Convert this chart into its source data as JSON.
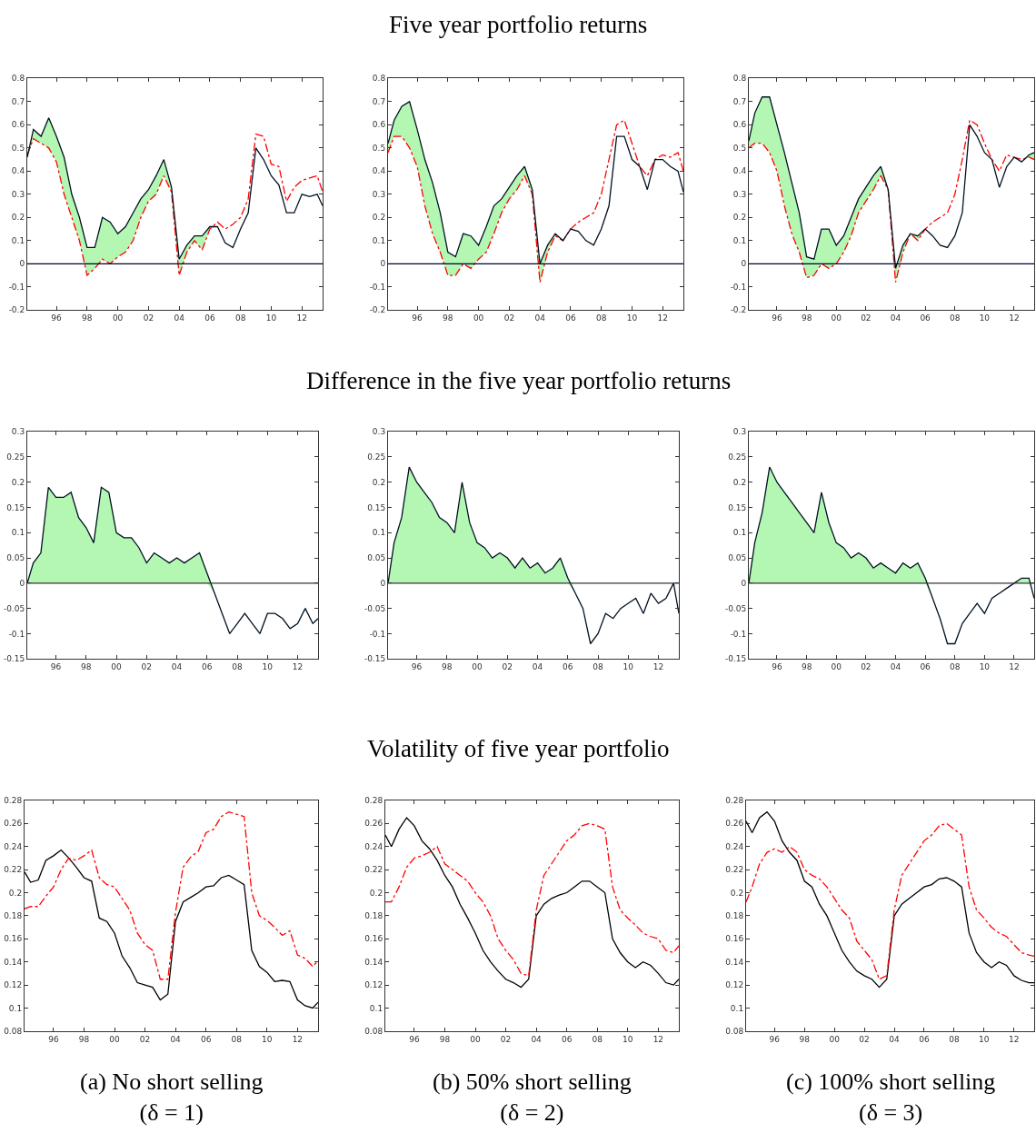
{
  "chart_data": [
    {
      "type": "line",
      "x": [
        1994.1,
        1994.5,
        1995.0,
        1995.5,
        1996.0,
        1996.5,
        1997.0,
        1997.5,
        1998.0,
        1998.5,
        1999.0,
        1999.5,
        2000.0,
        2000.5,
        2001.0,
        2001.5,
        2002.0,
        2002.5,
        2003.0,
        2003.5,
        2004.0,
        2004.5,
        2005.0,
        2005.5,
        2006.0,
        2006.5,
        2007.0,
        2007.5,
        2008.0,
        2008.5,
        2009.0,
        2009.5,
        2010.0,
        2010.5,
        2011.0,
        2011.5,
        2012.0,
        2012.5,
        2013.0,
        2013.35
      ],
      "xlim": [
        1994.1,
        2013.35
      ],
      "xticks": [
        {
          "value": 1996,
          "label": "96"
        },
        {
          "value": 1998,
          "label": "98"
        },
        {
          "value": 2000,
          "label": "00"
        },
        {
          "value": 2002,
          "label": "02"
        },
        {
          "value": 2004,
          "label": "04"
        },
        {
          "value": 2006,
          "label": "06"
        },
        {
          "value": 2008,
          "label": "08"
        },
        {
          "value": 2010,
          "label": "10"
        },
        {
          "value": 2012,
          "label": "12"
        }
      ],
      "ylim": [
        -0.2,
        0.8
      ],
      "yticks": [
        -0.2,
        -0.1,
        0,
        0.1,
        0.2,
        0.3,
        0.4,
        0.5,
        0.6,
        0.7,
        0.8
      ],
      "grid": false,
      "legend": false,
      "ref_lines": [
        {
          "axis": "y",
          "value": 0,
          "color": "#000033"
        }
      ],
      "series": [
        {
          "color": "#ff0000",
          "line_style": "dashed",
          "values": [
            0.47,
            0.54,
            0.52,
            0.5,
            0.44,
            0.3,
            0.2,
            0.1,
            -0.05,
            -0.02,
            0.02,
            0.0,
            0.03,
            0.05,
            0.1,
            0.2,
            0.27,
            0.3,
            0.38,
            0.31,
            -0.05,
            0.05,
            0.1,
            0.06,
            0.15,
            0.18,
            0.15,
            0.17,
            0.2,
            0.28,
            0.56,
            0.55,
            0.43,
            0.42,
            0.27,
            0.33,
            0.36,
            0.37,
            0.38,
            0.31
          ]
        },
        {
          "color": "#001122",
          "line_style": "solid",
          "lower": [
            0.46,
            0.54,
            0.52,
            0.5,
            0.44,
            0.3,
            0.2,
            0.1,
            -0.05,
            -0.02,
            0.02,
            0.0,
            0.03,
            0.05,
            0.1,
            0.2,
            0.27,
            0.3,
            0.38,
            0.31,
            -0.05,
            0.05,
            0.1,
            0.06,
            0.15,
            0.16,
            0.09,
            0.07,
            0.15,
            0.22,
            0.5,
            0.45,
            0.38,
            0.34,
            0.22,
            0.22,
            0.3,
            0.29,
            0.3,
            0.25
          ],
          "upper": [
            0.46,
            0.58,
            0.55,
            0.63,
            0.55,
            0.46,
            0.3,
            0.2,
            0.07,
            0.07,
            0.2,
            0.18,
            0.13,
            0.16,
            0.22,
            0.28,
            0.32,
            0.38,
            0.45,
            0.33,
            0.02,
            0.08,
            0.12,
            0.12,
            0.16,
            0.16,
            0.09,
            0.07,
            0.15,
            0.22,
            0.5,
            0.45,
            0.38,
            0.34,
            0.22,
            0.22,
            0.3,
            0.29,
            0.3,
            0.25
          ],
          "values": [
            0.46,
            0.58,
            0.55,
            0.63,
            0.55,
            0.46,
            0.3,
            0.2,
            0.07,
            0.07,
            0.2,
            0.18,
            0.13,
            0.16,
            0.22,
            0.28,
            0.32,
            0.38,
            0.45,
            0.33,
            0.02,
            0.08,
            0.12,
            0.12,
            0.16,
            0.16,
            0.09,
            0.07,
            0.15,
            0.22,
            0.5,
            0.45,
            0.38,
            0.34,
            0.22,
            0.22,
            0.3,
            0.29,
            0.3,
            0.25
          ]
        }
      ]
    },
    {
      "type": "line",
      "title": "Five year portfolio returns",
      "x": [
        1994.1,
        1994.5,
        1995.0,
        1995.5,
        1996.0,
        1996.5,
        1997.0,
        1997.5,
        1998.0,
        1998.5,
        1999.0,
        1999.5,
        2000.0,
        2000.5,
        2001.0,
        2001.5,
        2002.0,
        2002.5,
        2003.0,
        2003.5,
        2004.0,
        2004.5,
        2005.0,
        2005.5,
        2006.0,
        2006.5,
        2007.0,
        2007.5,
        2008.0,
        2008.5,
        2009.0,
        2009.5,
        2010.0,
        2010.5,
        2011.0,
        2011.5,
        2012.0,
        2012.5,
        2013.0,
        2013.35
      ],
      "xlim": [
        1994.1,
        2013.35
      ],
      "xticks": [
        {
          "value": 1996,
          "label": "96"
        },
        {
          "value": 1998,
          "label": "98"
        },
        {
          "value": 2000,
          "label": "00"
        },
        {
          "value": 2002,
          "label": "02"
        },
        {
          "value": 2004,
          "label": "04"
        },
        {
          "value": 2006,
          "label": "06"
        },
        {
          "value": 2008,
          "label": "08"
        },
        {
          "value": 2010,
          "label": "10"
        },
        {
          "value": 2012,
          "label": "12"
        }
      ],
      "ylim": [
        -0.2,
        0.8
      ],
      "yticks": [
        -0.2,
        -0.1,
        0,
        0.1,
        0.2,
        0.3,
        0.4,
        0.5,
        0.6,
        0.7,
        0.8
      ],
      "grid": false,
      "legend": false,
      "ref_lines": [
        {
          "axis": "y",
          "value": 0,
          "color": "#000033"
        }
      ],
      "series": [
        {
          "color": "#ff0000",
          "line_style": "dashed",
          "values": [
            0.48,
            0.55,
            0.55,
            0.5,
            0.42,
            0.25,
            0.13,
            0.05,
            -0.05,
            -0.05,
            0.0,
            -0.02,
            0.02,
            0.05,
            0.13,
            0.22,
            0.28,
            0.32,
            0.38,
            0.3,
            -0.08,
            0.05,
            0.12,
            0.1,
            0.15,
            0.18,
            0.2,
            0.22,
            0.3,
            0.45,
            0.6,
            0.62,
            0.52,
            0.42,
            0.38,
            0.45,
            0.47,
            0.46,
            0.48,
            0.4
          ]
        },
        {
          "color": "#001122",
          "line_style": "solid",
          "lower": [
            0.48,
            0.55,
            0.55,
            0.5,
            0.42,
            0.25,
            0.13,
            0.05,
            -0.05,
            -0.05,
            0.0,
            -0.02,
            0.02,
            0.05,
            0.13,
            0.22,
            0.28,
            0.32,
            0.38,
            0.3,
            -0.08,
            0.05,
            0.12,
            0.1,
            0.15,
            0.14,
            0.1,
            0.08,
            0.15,
            0.25,
            0.55,
            0.55,
            0.45,
            0.42,
            0.32,
            0.45,
            0.45,
            0.42,
            0.4,
            0.31
          ],
          "upper": [
            0.52,
            0.62,
            0.68,
            0.7,
            0.58,
            0.45,
            0.35,
            0.22,
            0.05,
            0.03,
            0.13,
            0.12,
            0.08,
            0.16,
            0.25,
            0.28,
            0.33,
            0.38,
            0.42,
            0.32,
            0.0,
            0.08,
            0.13,
            0.1,
            0.15,
            0.14,
            0.1,
            0.08,
            0.15,
            0.25,
            0.55,
            0.55,
            0.45,
            0.42,
            0.32,
            0.45,
            0.45,
            0.42,
            0.4,
            0.31
          ],
          "values": [
            0.52,
            0.62,
            0.68,
            0.7,
            0.58,
            0.45,
            0.35,
            0.22,
            0.05,
            0.03,
            0.13,
            0.12,
            0.08,
            0.16,
            0.25,
            0.28,
            0.33,
            0.38,
            0.42,
            0.32,
            0.0,
            0.08,
            0.13,
            0.1,
            0.15,
            0.14,
            0.1,
            0.08,
            0.15,
            0.25,
            0.55,
            0.55,
            0.45,
            0.42,
            0.32,
            0.45,
            0.45,
            0.42,
            0.4,
            0.31
          ]
        }
      ]
    },
    {
      "type": "line",
      "x": [
        1994.1,
        1994.5,
        1995.0,
        1995.5,
        1996.0,
        1996.5,
        1997.0,
        1997.5,
        1998.0,
        1998.5,
        1999.0,
        1999.5,
        2000.0,
        2000.5,
        2001.0,
        2001.5,
        2002.0,
        2002.5,
        2003.0,
        2003.5,
        2004.0,
        2004.5,
        2005.0,
        2005.5,
        2006.0,
        2006.5,
        2007.0,
        2007.5,
        2008.0,
        2008.5,
        2009.0,
        2009.5,
        2010.0,
        2010.5,
        2011.0,
        2011.5,
        2012.0,
        2012.5,
        2013.0,
        2013.35
      ],
      "xlim": [
        1994.1,
        2013.35
      ],
      "xticks": [
        {
          "value": 1996,
          "label": "96"
        },
        {
          "value": 1998,
          "label": "98"
        },
        {
          "value": 2000,
          "label": "00"
        },
        {
          "value": 2002,
          "label": "02"
        },
        {
          "value": 2004,
          "label": "04"
        },
        {
          "value": 2006,
          "label": "06"
        },
        {
          "value": 2008,
          "label": "08"
        },
        {
          "value": 2010,
          "label": "10"
        },
        {
          "value": 2012,
          "label": "12"
        }
      ],
      "ylim": [
        -0.2,
        0.8
      ],
      "yticks": [
        -0.2,
        -0.1,
        0,
        0.1,
        0.2,
        0.3,
        0.4,
        0.5,
        0.6,
        0.7,
        0.8
      ],
      "grid": false,
      "legend": false,
      "ref_lines": [
        {
          "axis": "y",
          "value": 0,
          "color": "#000033"
        }
      ],
      "series": [
        {
          "color": "#ff0000",
          "line_style": "dashed",
          "values": [
            0.5,
            0.52,
            0.52,
            0.48,
            0.4,
            0.25,
            0.13,
            0.05,
            -0.06,
            -0.05,
            0.0,
            -0.02,
            0.0,
            0.05,
            0.12,
            0.22,
            0.27,
            0.32,
            0.38,
            0.32,
            -0.08,
            0.05,
            0.13,
            0.1,
            0.15,
            0.18,
            0.2,
            0.22,
            0.3,
            0.45,
            0.62,
            0.6,
            0.52,
            0.45,
            0.4,
            0.47,
            0.46,
            0.45,
            0.46,
            0.45
          ]
        },
        {
          "color": "#001122",
          "line_style": "solid",
          "lower": [
            0.5,
            0.52,
            0.52,
            0.48,
            0.4,
            0.25,
            0.13,
            0.05,
            -0.06,
            -0.05,
            0.0,
            -0.02,
            0.0,
            0.05,
            0.12,
            0.22,
            0.27,
            0.32,
            0.38,
            0.32,
            -0.08,
            0.05,
            0.13,
            0.1,
            0.15,
            0.12,
            0.08,
            0.07,
            0.12,
            0.22,
            0.6,
            0.55,
            0.48,
            0.45,
            0.33,
            0.42,
            0.46,
            0.44,
            0.46,
            0.45
          ],
          "upper": [
            0.53,
            0.65,
            0.72,
            0.72,
            0.6,
            0.48,
            0.35,
            0.22,
            0.03,
            0.02,
            0.15,
            0.15,
            0.08,
            0.12,
            0.2,
            0.28,
            0.33,
            0.38,
            0.42,
            0.32,
            -0.02,
            0.08,
            0.13,
            0.12,
            0.15,
            0.12,
            0.08,
            0.07,
            0.12,
            0.22,
            0.6,
            0.55,
            0.48,
            0.45,
            0.33,
            0.42,
            0.46,
            0.44,
            0.47,
            0.48
          ],
          "values": [
            0.53,
            0.65,
            0.72,
            0.72,
            0.6,
            0.48,
            0.35,
            0.22,
            0.03,
            0.02,
            0.15,
            0.15,
            0.08,
            0.12,
            0.2,
            0.28,
            0.33,
            0.38,
            0.42,
            0.32,
            -0.02,
            0.08,
            0.13,
            0.12,
            0.15,
            0.12,
            0.08,
            0.07,
            0.12,
            0.22,
            0.6,
            0.55,
            0.48,
            0.45,
            0.33,
            0.42,
            0.46,
            0.44,
            0.47,
            0.48
          ]
        }
      ]
    },
    {
      "type": "line",
      "x": [
        1994.1,
        1994.5,
        1995.0,
        1995.5,
        1996.0,
        1996.5,
        1997.0,
        1997.5,
        1998.0,
        1998.5,
        1999.0,
        1999.5,
        2000.0,
        2000.5,
        2001.0,
        2001.5,
        2002.0,
        2002.5,
        2003.0,
        2003.5,
        2004.0,
        2004.5,
        2005.0,
        2005.5,
        2006.0,
        2006.5,
        2007.0,
        2007.5,
        2008.0,
        2008.5,
        2009.0,
        2009.5,
        2010.0,
        2010.5,
        2011.0,
        2011.5,
        2012.0,
        2012.5,
        2013.0,
        2013.35
      ],
      "xlim": [
        1994.1,
        2013.35
      ],
      "xticks": [
        {
          "value": 1996,
          "label": "96"
        },
        {
          "value": 1998,
          "label": "98"
        },
        {
          "value": 2000,
          "label": "00"
        },
        {
          "value": 2002,
          "label": "02"
        },
        {
          "value": 2004,
          "label": "04"
        },
        {
          "value": 2006,
          "label": "06"
        },
        {
          "value": 2008,
          "label": "08"
        },
        {
          "value": 2010,
          "label": "10"
        },
        {
          "value": 2012,
          "label": "12"
        }
      ],
      "ylim": [
        -0.15,
        0.3
      ],
      "yticks": [
        -0.15,
        -0.1,
        -0.05,
        0,
        0.05,
        0.1,
        0.15,
        0.2,
        0.25,
        0.3
      ],
      "grid": false,
      "legend": false,
      "ref_lines": [
        {
          "axis": "y",
          "value": 0,
          "color": "#333333"
        }
      ],
      "series": [
        {
          "color": "#001122",
          "line_style": "solid",
          "lower": [
            0,
            0,
            0,
            0,
            0,
            0,
            0,
            0,
            0,
            0,
            0,
            0,
            0,
            0,
            0,
            0,
            0,
            0,
            0,
            0,
            0,
            0,
            0,
            0,
            0,
            -0.02,
            -0.06,
            -0.1,
            -0.08,
            -0.06,
            -0.08,
            -0.1,
            -0.06,
            -0.06,
            -0.07,
            -0.09,
            -0.08,
            -0.05,
            -0.08,
            -0.07
          ],
          "upper": [
            0.0,
            0.04,
            0.06,
            0.19,
            0.17,
            0.17,
            0.18,
            0.13,
            0.11,
            0.08,
            0.19,
            0.18,
            0.1,
            0.09,
            0.09,
            0.07,
            0.04,
            0.06,
            0.05,
            0.04,
            0.05,
            0.04,
            0.05,
            0.06,
            0.02,
            -0.02,
            -0.06,
            -0.1,
            -0.08,
            -0.06,
            -0.08,
            -0.1,
            -0.06,
            -0.06,
            -0.07,
            -0.09,
            -0.08,
            -0.05,
            -0.08,
            -0.07
          ],
          "values": [
            0.0,
            0.04,
            0.06,
            0.19,
            0.17,
            0.17,
            0.18,
            0.13,
            0.11,
            0.08,
            0.19,
            0.18,
            0.1,
            0.09,
            0.09,
            0.07,
            0.04,
            0.06,
            0.05,
            0.04,
            0.05,
            0.04,
            0.05,
            0.06,
            0.02,
            -0.02,
            -0.06,
            -0.1,
            -0.08,
            -0.06,
            -0.08,
            -0.1,
            -0.06,
            -0.06,
            -0.07,
            -0.09,
            -0.08,
            -0.05,
            -0.08,
            -0.07
          ]
        }
      ]
    },
    {
      "type": "line",
      "title": "Difference in the five year portfolio returns",
      "x": [
        1994.1,
        1994.5,
        1995.0,
        1995.5,
        1996.0,
        1996.5,
        1997.0,
        1997.5,
        1998.0,
        1998.5,
        1999.0,
        1999.5,
        2000.0,
        2000.5,
        2001.0,
        2001.5,
        2002.0,
        2002.5,
        2003.0,
        2003.5,
        2004.0,
        2004.5,
        2005.0,
        2005.5,
        2006.0,
        2006.5,
        2007.0,
        2007.5,
        2008.0,
        2008.5,
        2009.0,
        2009.5,
        2010.0,
        2010.5,
        2011.0,
        2011.5,
        2012.0,
        2012.5,
        2013.0,
        2013.35
      ],
      "xlim": [
        1994.1,
        2013.35
      ],
      "xticks": [
        {
          "value": 1996,
          "label": "96"
        },
        {
          "value": 1998,
          "label": "98"
        },
        {
          "value": 2000,
          "label": "00"
        },
        {
          "value": 2002,
          "label": "02"
        },
        {
          "value": 2004,
          "label": "04"
        },
        {
          "value": 2006,
          "label": "06"
        },
        {
          "value": 2008,
          "label": "08"
        },
        {
          "value": 2010,
          "label": "10"
        },
        {
          "value": 2012,
          "label": "12"
        }
      ],
      "ylim": [
        -0.15,
        0.3
      ],
      "yticks": [
        -0.15,
        -0.1,
        -0.05,
        0,
        0.05,
        0.1,
        0.15,
        0.2,
        0.25,
        0.3
      ],
      "grid": false,
      "legend": false,
      "ref_lines": [
        {
          "axis": "y",
          "value": 0,
          "color": "#333333"
        }
      ],
      "series": [
        {
          "color": "#001122",
          "line_style": "solid",
          "lower": [
            0,
            0,
            0,
            0,
            0,
            0,
            0,
            0,
            0,
            0,
            0,
            0,
            0,
            0,
            0,
            0,
            0,
            0,
            0,
            0,
            0,
            0,
            0,
            0,
            0,
            -0.02,
            -0.05,
            -0.12,
            -0.1,
            -0.06,
            -0.07,
            -0.05,
            -0.04,
            -0.03,
            -0.06,
            -0.02,
            -0.04,
            -0.03,
            0,
            -0.06
          ],
          "upper": [
            0.0,
            0.08,
            0.13,
            0.23,
            0.2,
            0.18,
            0.16,
            0.13,
            0.12,
            0.1,
            0.2,
            0.12,
            0.08,
            0.07,
            0.05,
            0.06,
            0.05,
            0.03,
            0.05,
            0.03,
            0.04,
            0.02,
            0.03,
            0.05,
            0.01,
            -0.02,
            -0.05,
            -0.12,
            -0.1,
            -0.06,
            -0.07,
            -0.05,
            -0.04,
            -0.03,
            -0.06,
            -0.02,
            -0.04,
            -0.03,
            0.0,
            -0.06
          ],
          "values": [
            0.0,
            0.08,
            0.13,
            0.23,
            0.2,
            0.18,
            0.16,
            0.13,
            0.12,
            0.1,
            0.2,
            0.12,
            0.08,
            0.07,
            0.05,
            0.06,
            0.05,
            0.03,
            0.05,
            0.03,
            0.04,
            0.02,
            0.03,
            0.05,
            0.01,
            -0.02,
            -0.05,
            -0.12,
            -0.1,
            -0.06,
            -0.07,
            -0.05,
            -0.04,
            -0.03,
            -0.06,
            -0.02,
            -0.04,
            -0.03,
            0.0,
            -0.06
          ]
        }
      ]
    },
    {
      "type": "line",
      "x": [
        1994.1,
        1994.5,
        1995.0,
        1995.5,
        1996.0,
        1996.5,
        1997.0,
        1997.5,
        1998.0,
        1998.5,
        1999.0,
        1999.5,
        2000.0,
        2000.5,
        2001.0,
        2001.5,
        2002.0,
        2002.5,
        2003.0,
        2003.5,
        2004.0,
        2004.5,
        2005.0,
        2005.5,
        2006.0,
        2006.5,
        2007.0,
        2007.5,
        2008.0,
        2008.5,
        2009.0,
        2009.5,
        2010.0,
        2010.5,
        2011.0,
        2011.5,
        2012.0,
        2012.5,
        2013.0,
        2013.35
      ],
      "xlim": [
        1994.1,
        2013.35
      ],
      "xticks": [
        {
          "value": 1996,
          "label": "96"
        },
        {
          "value": 1998,
          "label": "98"
        },
        {
          "value": 2000,
          "label": "00"
        },
        {
          "value": 2002,
          "label": "02"
        },
        {
          "value": 2004,
          "label": "04"
        },
        {
          "value": 2006,
          "label": "06"
        },
        {
          "value": 2008,
          "label": "08"
        },
        {
          "value": 2010,
          "label": "10"
        },
        {
          "value": 2012,
          "label": "12"
        }
      ],
      "ylim": [
        -0.15,
        0.3
      ],
      "yticks": [
        -0.15,
        -0.1,
        -0.05,
        0,
        0.05,
        0.1,
        0.15,
        0.2,
        0.25,
        0.3
      ],
      "grid": false,
      "legend": false,
      "ref_lines": [
        {
          "axis": "y",
          "value": 0,
          "color": "#333333"
        }
      ],
      "series": [
        {
          "color": "#001122",
          "line_style": "solid",
          "lower": [
            0,
            0,
            0,
            0,
            0,
            0,
            0,
            0,
            0,
            0,
            0,
            0,
            0,
            0,
            0,
            0,
            0,
            0,
            0,
            0,
            0,
            0,
            0,
            0,
            0,
            -0.03,
            -0.07,
            -0.12,
            -0.12,
            -0.08,
            -0.06,
            -0.04,
            -0.06,
            -0.03,
            -0.02,
            -0.01,
            0,
            0,
            0,
            -0.03
          ],
          "upper": [
            0.0,
            0.08,
            0.14,
            0.23,
            0.2,
            0.18,
            0.16,
            0.14,
            0.12,
            0.1,
            0.18,
            0.12,
            0.08,
            0.07,
            0.05,
            0.06,
            0.05,
            0.03,
            0.04,
            0.03,
            0.02,
            0.04,
            0.03,
            0.04,
            0.01,
            -0.03,
            -0.07,
            -0.12,
            -0.12,
            -0.08,
            -0.06,
            -0.04,
            -0.06,
            -0.03,
            -0.02,
            -0.01,
            0.0,
            0.01,
            0.01,
            -0.03
          ],
          "values": [
            0.0,
            0.08,
            0.14,
            0.23,
            0.2,
            0.18,
            0.16,
            0.14,
            0.12,
            0.1,
            0.18,
            0.12,
            0.08,
            0.07,
            0.05,
            0.06,
            0.05,
            0.03,
            0.04,
            0.03,
            0.02,
            0.04,
            0.03,
            0.04,
            0.01,
            -0.03,
            -0.07,
            -0.12,
            -0.12,
            -0.08,
            -0.06,
            -0.04,
            -0.06,
            -0.03,
            -0.02,
            -0.01,
            0.0,
            0.01,
            0.01,
            -0.03
          ]
        }
      ]
    },
    {
      "type": "line",
      "annotations": [
        "(a) No short selling\n(δ = 1)"
      ],
      "x": [
        1994.1,
        1994.5,
        1995.0,
        1995.5,
        1996.0,
        1996.5,
        1997.0,
        1997.5,
        1998.0,
        1998.5,
        1999.0,
        1999.5,
        2000.0,
        2000.5,
        2001.0,
        2001.5,
        2002.0,
        2002.5,
        2003.0,
        2003.5,
        2004.0,
        2004.5,
        2005.0,
        2005.5,
        2006.0,
        2006.5,
        2007.0,
        2007.5,
        2008.0,
        2008.5,
        2009.0,
        2009.5,
        2010.0,
        2010.5,
        2011.0,
        2011.5,
        2012.0,
        2012.5,
        2013.0,
        2013.35
      ],
      "xlim": [
        1994.1,
        2013.35
      ],
      "xticks": [
        {
          "value": 1996,
          "label": "96"
        },
        {
          "value": 1998,
          "label": "98"
        },
        {
          "value": 2000,
          "label": "00"
        },
        {
          "value": 2002,
          "label": "02"
        },
        {
          "value": 2004,
          "label": "04"
        },
        {
          "value": 2006,
          "label": "06"
        },
        {
          "value": 2008,
          "label": "08"
        },
        {
          "value": 2010,
          "label": "10"
        },
        {
          "value": 2012,
          "label": "12"
        }
      ],
      "ylim": [
        0.08,
        0.28
      ],
      "yticks": [
        0.08,
        0.1,
        0.12,
        0.14,
        0.16,
        0.18,
        0.2,
        0.22,
        0.24,
        0.26,
        0.28
      ],
      "grid": false,
      "legend": false,
      "series": [
        {
          "color": "#000000",
          "line_style": "solid",
          "values": [
            0.218,
            0.209,
            0.211,
            0.228,
            0.232,
            0.237,
            0.23,
            0.222,
            0.213,
            0.21,
            0.178,
            0.175,
            0.165,
            0.145,
            0.135,
            0.122,
            0.12,
            0.118,
            0.107,
            0.112,
            0.175,
            0.192,
            0.196,
            0.2,
            0.205,
            0.206,
            0.213,
            0.215,
            0.211,
            0.207,
            0.15,
            0.136,
            0.131,
            0.123,
            0.124,
            0.123,
            0.107,
            0.102,
            0.1,
            0.105
          ]
        },
        {
          "color": "#ff0000",
          "line_style": "dashed",
          "values": [
            0.186,
            0.188,
            0.188,
            0.197,
            0.205,
            0.22,
            0.23,
            0.228,
            0.232,
            0.237,
            0.213,
            0.207,
            0.205,
            0.195,
            0.185,
            0.165,
            0.155,
            0.15,
            0.125,
            0.125,
            0.183,
            0.222,
            0.231,
            0.236,
            0.252,
            0.255,
            0.266,
            0.27,
            0.268,
            0.266,
            0.2,
            0.18,
            0.176,
            0.17,
            0.163,
            0.167,
            0.146,
            0.143,
            0.136,
            0.141
          ]
        }
      ]
    },
    {
      "type": "line",
      "title": "Volatility of five year portfolio",
      "annotations": [
        "(b) 50% short selling\n(δ = 2)"
      ],
      "x": [
        1994.1,
        1994.5,
        1995.0,
        1995.5,
        1996.0,
        1996.5,
        1997.0,
        1997.5,
        1998.0,
        1998.5,
        1999.0,
        1999.5,
        2000.0,
        2000.5,
        2001.0,
        2001.5,
        2002.0,
        2002.5,
        2003.0,
        2003.5,
        2004.0,
        2004.5,
        2005.0,
        2005.5,
        2006.0,
        2006.5,
        2007.0,
        2007.5,
        2008.0,
        2008.5,
        2009.0,
        2009.5,
        2010.0,
        2010.5,
        2011.0,
        2011.5,
        2012.0,
        2012.5,
        2013.0,
        2013.35
      ],
      "xlim": [
        1994.1,
        2013.35
      ],
      "xticks": [
        {
          "value": 1996,
          "label": "96"
        },
        {
          "value": 1998,
          "label": "98"
        },
        {
          "value": 2000,
          "label": "00"
        },
        {
          "value": 2002,
          "label": "02"
        },
        {
          "value": 2004,
          "label": "04"
        },
        {
          "value": 2006,
          "label": "06"
        },
        {
          "value": 2008,
          "label": "08"
        },
        {
          "value": 2010,
          "label": "10"
        },
        {
          "value": 2012,
          "label": "12"
        }
      ],
      "ylim": [
        0.08,
        0.28
      ],
      "yticks": [
        0.08,
        0.1,
        0.12,
        0.14,
        0.16,
        0.18,
        0.2,
        0.22,
        0.24,
        0.26,
        0.28
      ],
      "grid": false,
      "legend": false,
      "series": [
        {
          "color": "#000000",
          "line_style": "solid",
          "values": [
            0.25,
            0.24,
            0.255,
            0.265,
            0.258,
            0.245,
            0.238,
            0.228,
            0.215,
            0.205,
            0.19,
            0.178,
            0.165,
            0.15,
            0.14,
            0.132,
            0.125,
            0.122,
            0.118,
            0.125,
            0.18,
            0.19,
            0.195,
            0.198,
            0.2,
            0.205,
            0.21,
            0.21,
            0.205,
            0.2,
            0.16,
            0.148,
            0.14,
            0.135,
            0.14,
            0.137,
            0.13,
            0.122,
            0.12,
            0.125
          ]
        },
        {
          "color": "#ff0000",
          "line_style": "dashed",
          "values": [
            0.192,
            0.192,
            0.205,
            0.222,
            0.23,
            0.232,
            0.235,
            0.24,
            0.225,
            0.22,
            0.215,
            0.21,
            0.2,
            0.192,
            0.18,
            0.16,
            0.15,
            0.142,
            0.13,
            0.128,
            0.185,
            0.215,
            0.225,
            0.235,
            0.245,
            0.25,
            0.258,
            0.26,
            0.258,
            0.255,
            0.205,
            0.185,
            0.178,
            0.172,
            0.165,
            0.162,
            0.16,
            0.15,
            0.148,
            0.154
          ]
        }
      ]
    },
    {
      "type": "line",
      "annotations": [
        "(c) 100% short selling\n(δ = 3)"
      ],
      "x": [
        1994.1,
        1994.5,
        1995.0,
        1995.5,
        1996.0,
        1996.5,
        1997.0,
        1997.5,
        1998.0,
        1998.5,
        1999.0,
        1999.5,
        2000.0,
        2000.5,
        2001.0,
        2001.5,
        2002.0,
        2002.5,
        2003.0,
        2003.5,
        2004.0,
        2004.5,
        2005.0,
        2005.5,
        2006.0,
        2006.5,
        2007.0,
        2007.5,
        2008.0,
        2008.5,
        2009.0,
        2009.5,
        2010.0,
        2010.5,
        2011.0,
        2011.5,
        2012.0,
        2012.5,
        2013.0,
        2013.35
      ],
      "xlim": [
        1994.1,
        2013.35
      ],
      "xticks": [
        {
          "value": 1996,
          "label": "96"
        },
        {
          "value": 1998,
          "label": "98"
        },
        {
          "value": 2000,
          "label": "00"
        },
        {
          "value": 2002,
          "label": "02"
        },
        {
          "value": 2004,
          "label": "04"
        },
        {
          "value": 2006,
          "label": "06"
        },
        {
          "value": 2008,
          "label": "08"
        },
        {
          "value": 2010,
          "label": "10"
        },
        {
          "value": 2012,
          "label": "12"
        }
      ],
      "ylim": [
        0.08,
        0.28
      ],
      "yticks": [
        0.08,
        0.1,
        0.12,
        0.14,
        0.16,
        0.18,
        0.2,
        0.22,
        0.24,
        0.26,
        0.28
      ],
      "grid": false,
      "legend": false,
      "series": [
        {
          "color": "#000000",
          "line_style": "solid",
          "values": [
            0.262,
            0.252,
            0.265,
            0.27,
            0.262,
            0.245,
            0.235,
            0.228,
            0.21,
            0.205,
            0.19,
            0.18,
            0.165,
            0.15,
            0.14,
            0.132,
            0.128,
            0.125,
            0.118,
            0.125,
            0.18,
            0.19,
            0.195,
            0.2,
            0.205,
            0.207,
            0.212,
            0.213,
            0.21,
            0.205,
            0.165,
            0.148,
            0.14,
            0.135,
            0.14,
            0.137,
            0.128,
            0.124,
            0.122,
            0.122
          ]
        },
        {
          "color": "#ff0000",
          "line_style": "dashed",
          "values": [
            0.192,
            0.205,
            0.225,
            0.235,
            0.238,
            0.235,
            0.24,
            0.235,
            0.22,
            0.215,
            0.212,
            0.205,
            0.195,
            0.185,
            0.178,
            0.158,
            0.15,
            0.142,
            0.125,
            0.128,
            0.185,
            0.215,
            0.225,
            0.235,
            0.245,
            0.25,
            0.258,
            0.26,
            0.255,
            0.25,
            0.205,
            0.185,
            0.178,
            0.17,
            0.165,
            0.162,
            0.155,
            0.148,
            0.146,
            0.145
          ]
        }
      ]
    }
  ]
}
